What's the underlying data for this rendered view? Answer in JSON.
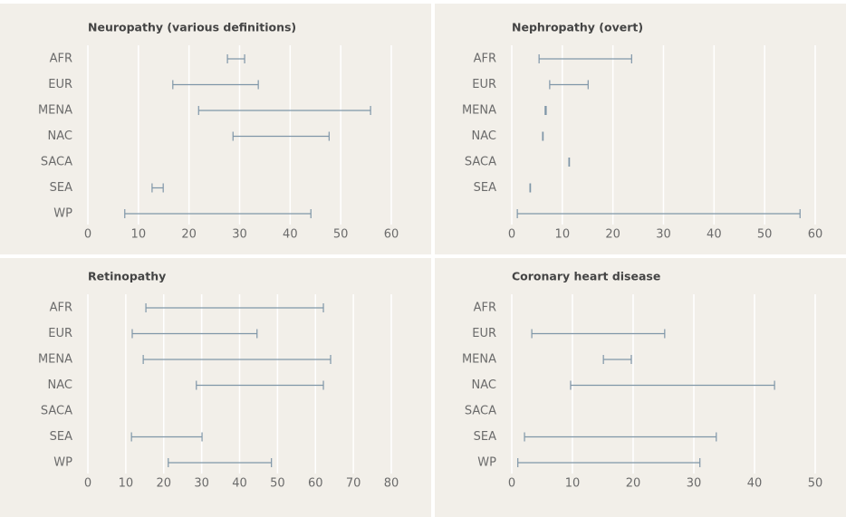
{
  "chart_data": [
    {
      "type": "range",
      "title": "Neuropathy (various definitions)",
      "categories": [
        "AFR",
        "EUR",
        "MENA",
        "NAC",
        "SACA",
        "SEA",
        "WP"
      ],
      "low": [
        27.6,
        16.8,
        21.9,
        28.7,
        null,
        12.7,
        7.3
      ],
      "high": [
        31.0,
        33.7,
        55.9,
        47.7,
        null,
        14.9,
        44.1
      ],
      "color": "#7f96a8",
      "xlim": [
        0,
        60
      ],
      "xticks": [
        0,
        10,
        20,
        30,
        40,
        50,
        60
      ],
      "grid": true
    },
    {
      "type": "range",
      "title": "Nephropathy (overt)",
      "categories": [
        "AFR",
        "EUR",
        "MENA",
        "NAC",
        "SACA",
        "SEA",
        null
      ],
      "low": [
        5.4,
        7.5,
        6.6,
        6.1,
        11.3,
        3.6,
        1.1
      ],
      "high": [
        23.7,
        15.1,
        6.8,
        6.2,
        11.4,
        3.7,
        57.0
      ],
      "color": "#7f96a8",
      "xlim": [
        0,
        60
      ],
      "xticks": [
        0,
        10,
        20,
        30,
        40,
        50,
        60
      ],
      "grid": true
    },
    {
      "type": "range",
      "title": "Retinopathy",
      "categories": [
        "AFR",
        "EUR",
        "MENA",
        "NAC",
        "SACA",
        "SEA",
        "WP"
      ],
      "low": [
        15.3,
        11.7,
        14.6,
        28.6,
        null,
        11.5,
        21.2
      ],
      "high": [
        62.1,
        44.6,
        64.0,
        62.1,
        null,
        30.1,
        48.4
      ],
      "color": "#7f96a8",
      "xlim": [
        0,
        80
      ],
      "xticks": [
        0,
        10,
        20,
        30,
        40,
        50,
        60,
        70,
        80
      ],
      "grid": true
    },
    {
      "type": "range",
      "title": "Coronary heart disease",
      "categories": [
        "AFR",
        "EUR",
        "MENA",
        "NAC",
        "SACA",
        "SEA",
        "WP"
      ],
      "low": [
        null,
        3.3,
        15.1,
        9.7,
        null,
        2.1,
        1.0
      ],
      "high": [
        null,
        25.2,
        19.7,
        43.3,
        null,
        33.7,
        31.0
      ],
      "color": "#7f96a8",
      "xlim": [
        0,
        50
      ],
      "xticks": [
        0,
        10,
        20,
        30,
        40,
        50
      ],
      "grid": true
    }
  ]
}
